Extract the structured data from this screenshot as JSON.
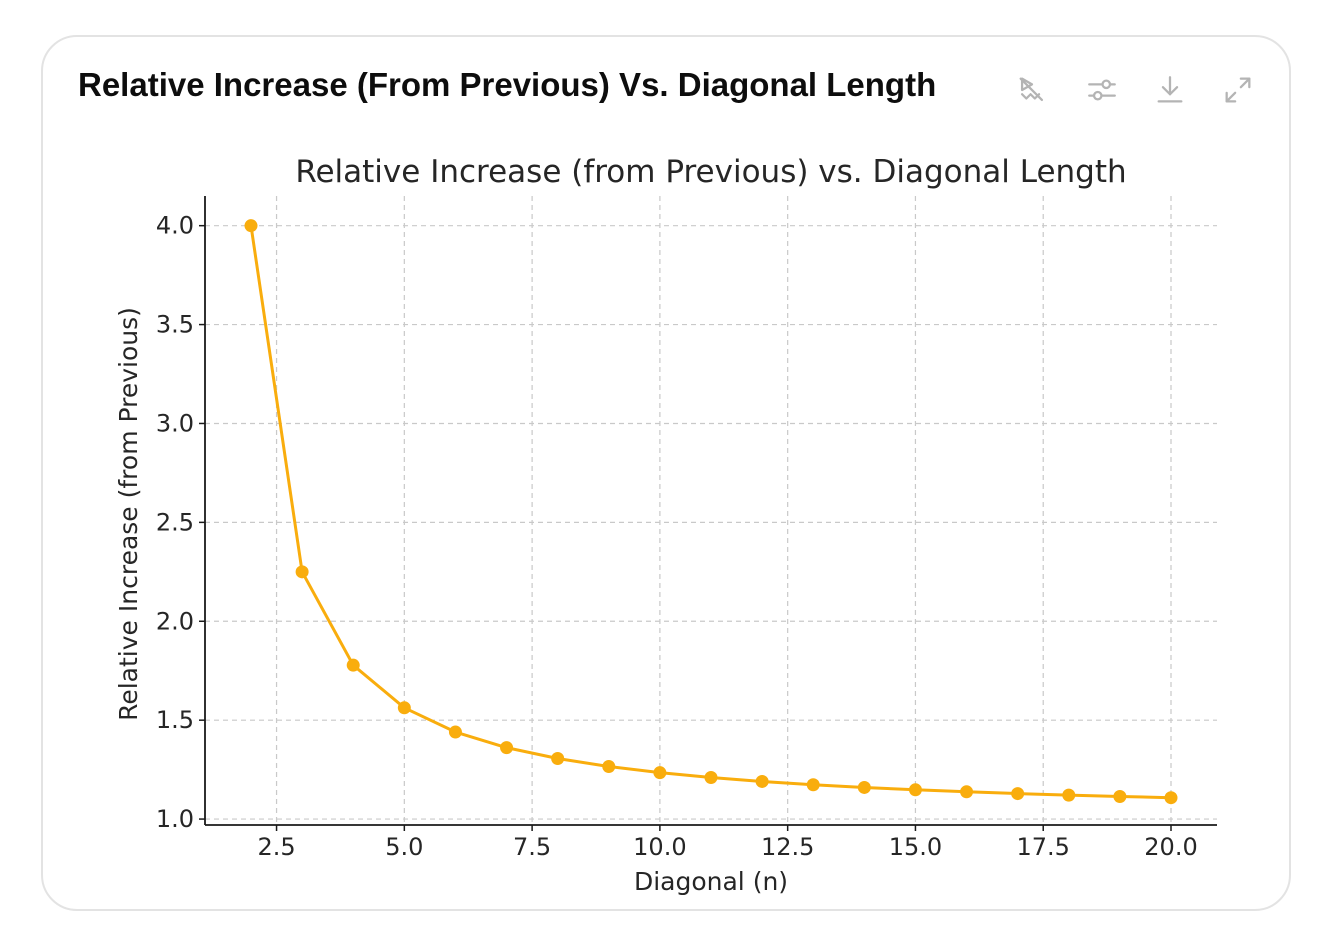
{
  "header": {
    "title": "Relative Increase (From Previous) Vs. Diagonal Length"
  },
  "toolbar": {
    "buttons": [
      {
        "name": "interactive-toggle-button",
        "icon": "chart-sparkle-off-icon"
      },
      {
        "name": "chart-settings-button",
        "icon": "sliders-icon"
      },
      {
        "name": "download-button",
        "icon": "download-icon"
      },
      {
        "name": "expand-button",
        "icon": "expand-icon"
      }
    ]
  },
  "colors": {
    "series": "#f9ad0d",
    "grid": "#c9c9c9",
    "axis": "#1a1a1a",
    "text": "#262626",
    "icon": "#b4b4b4"
  },
  "chart_data": {
    "type": "line",
    "title": "Relative Increase (from Previous) vs. Diagonal Length",
    "xlabel": "Diagonal (n)",
    "ylabel": "Relative Increase (from Previous)",
    "xlim": [
      1.1,
      20.9
    ],
    "ylim": [
      0.97,
      4.15
    ],
    "xticks": [
      2.5,
      5.0,
      7.5,
      10.0,
      12.5,
      15.0,
      17.5,
      20.0
    ],
    "xtick_labels": [
      "2.5",
      "5.0",
      "7.5",
      "10.0",
      "12.5",
      "15.0",
      "17.5",
      "20.0"
    ],
    "yticks": [
      1.0,
      1.5,
      2.0,
      2.5,
      3.0,
      3.5,
      4.0
    ],
    "ytick_labels": [
      "1.0",
      "1.5",
      "2.0",
      "2.5",
      "3.0",
      "3.5",
      "4.0"
    ],
    "grid": true,
    "series": [
      {
        "name": "Relative Increase",
        "marker": "circle",
        "x": [
          2,
          3,
          4,
          5,
          6,
          7,
          8,
          9,
          10,
          11,
          12,
          13,
          14,
          15,
          16,
          17,
          18,
          19,
          20
        ],
        "values": [
          4.0,
          2.25,
          1.778,
          1.5625,
          1.44,
          1.3611,
          1.3061,
          1.2656,
          1.2346,
          1.21,
          1.1901,
          1.1736,
          1.1598,
          1.148,
          1.1378,
          1.1289,
          1.121,
          1.1142,
          1.108
        ]
      }
    ]
  }
}
